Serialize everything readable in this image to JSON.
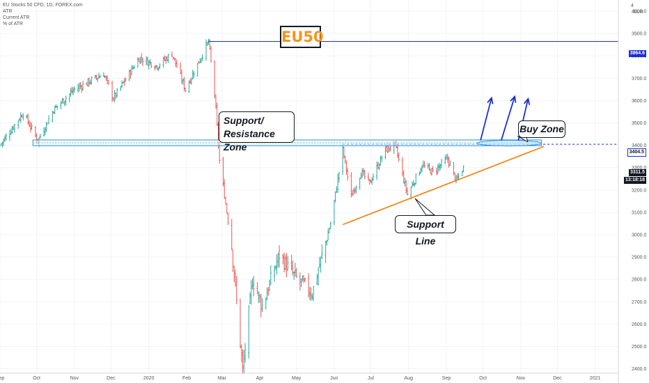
{
  "header": {
    "symbol_line": "EU Stocks 50 CFD, 1D, FOREX.com",
    "indicators": [
      "ATR",
      "Current ATR",
      "% of ATR"
    ]
  },
  "annotations": {
    "title_box": "EU50",
    "support_resistance_zone": [
      "Support/",
      "Resistance Zone"
    ],
    "buy_zone": "Buy Zone",
    "support_line": "Support Line"
  },
  "price_tags": {
    "top_level": "3864.6",
    "buy_level": "3404.5",
    "current_price": "3311.5",
    "countdown": "13:18:18"
  },
  "axis_top_label": "EUR",
  "axis_top_tick": "4",
  "colors": {
    "up_candle": "#26a69a",
    "down_candle": "#ef5350",
    "resistance_line": "#1e2fd6",
    "support_line": "#f57c00",
    "zone_stroke": "#2196f3",
    "zone_fill": "#e3f2fd",
    "arrows": "#1a2fd0",
    "title_text": "#f7931a",
    "current_tag": "#131722"
  },
  "chart_data": {
    "type": "candlestick",
    "xlabel": "",
    "ylabel": "",
    "y_range": [
      2380,
      4050
    ],
    "y_ticks": [
      2400,
      2500,
      2600,
      2700,
      2800,
      2900,
      3000,
      3100,
      3200,
      3300,
      3400,
      3500,
      3600,
      3700,
      3800,
      3900,
      4000
    ],
    "x_range": [
      "2019-09-01",
      "2021-01-20"
    ],
    "x_ticks": [
      {
        "label": "Sep",
        "date": "2019-09-01"
      },
      {
        "label": "Oct",
        "date": "2019-10-01"
      },
      {
        "label": "Nov",
        "date": "2019-11-01"
      },
      {
        "label": "Dec",
        "date": "2019-12-01"
      },
      {
        "label": "2020",
        "date": "2020-01-01"
      },
      {
        "label": "Feb",
        "date": "2020-02-01"
      },
      {
        "label": "Mar",
        "date": "2020-03-01"
      },
      {
        "label": "Apr",
        "date": "2020-04-01"
      },
      {
        "label": "May",
        "date": "2020-05-01"
      },
      {
        "label": "Jun",
        "date": "2020-06-01"
      },
      {
        "label": "Jul",
        "date": "2020-07-01"
      },
      {
        "label": "Aug",
        "date": "2020-08-01"
      },
      {
        "label": "Sep",
        "date": "2020-09-01"
      },
      {
        "label": "Oct",
        "date": "2020-10-01"
      },
      {
        "label": "Nov",
        "date": "2020-11-01"
      },
      {
        "label": "Dec",
        "date": "2020-12-01"
      },
      {
        "label": "2021",
        "date": "2021-01-01"
      }
    ],
    "price_path": [
      {
        "date": "2019-09-01",
        "close": 3400
      },
      {
        "date": "2019-09-20",
        "close": 3545
      },
      {
        "date": "2019-10-02",
        "close": 3420
      },
      {
        "date": "2019-10-15",
        "close": 3560
      },
      {
        "date": "2019-11-01",
        "close": 3650
      },
      {
        "date": "2019-11-25",
        "close": 3720
      },
      {
        "date": "2019-12-03",
        "close": 3610
      },
      {
        "date": "2019-12-24",
        "close": 3790
      },
      {
        "date": "2020-01-08",
        "close": 3755
      },
      {
        "date": "2020-01-20",
        "close": 3810
      },
      {
        "date": "2020-01-31",
        "close": 3650
      },
      {
        "date": "2020-02-19",
        "close": 3865
      },
      {
        "date": "2020-02-24",
        "close": 3630
      },
      {
        "date": "2020-02-28",
        "close": 3330
      },
      {
        "date": "2020-03-09",
        "close": 2950
      },
      {
        "date": "2020-03-18",
        "close": 2390
      },
      {
        "date": "2020-03-26",
        "close": 2800
      },
      {
        "date": "2020-04-03",
        "close": 2680
      },
      {
        "date": "2020-04-17",
        "close": 2910
      },
      {
        "date": "2020-04-30",
        "close": 2810
      },
      {
        "date": "2020-05-14",
        "close": 2740
      },
      {
        "date": "2020-05-29",
        "close": 3050
      },
      {
        "date": "2020-06-08",
        "close": 3380
      },
      {
        "date": "2020-06-15",
        "close": 3170
      },
      {
        "date": "2020-06-23",
        "close": 3280
      },
      {
        "date": "2020-06-30",
        "close": 3230
      },
      {
        "date": "2020-07-13",
        "close": 3380
      },
      {
        "date": "2020-07-21",
        "close": 3400
      },
      {
        "date": "2020-07-31",
        "close": 3180
      },
      {
        "date": "2020-08-12",
        "close": 3310
      },
      {
        "date": "2020-08-21",
        "close": 3280
      },
      {
        "date": "2020-09-02",
        "close": 3340
      },
      {
        "date": "2020-09-09",
        "close": 3240
      },
      {
        "date": "2020-09-16",
        "close": 3311.5
      }
    ],
    "levels": [
      {
        "price": 3864.6,
        "from": "2020-02-19",
        "style": "solid"
      },
      {
        "price": 3404.5,
        "from": "2020-06-08",
        "style": "dashed"
      }
    ],
    "support_trendline": [
      {
        "date": "2020-06-08",
        "price": 3045
      },
      {
        "date": "2020-11-20",
        "price": 3395
      }
    ],
    "sr_zone": {
      "from": "2019-09-28",
      "to": "2020-11-18",
      "low": 3398,
      "high": 3424
    },
    "buy_zone_ellipse": {
      "from": "2020-09-26",
      "to": "2020-11-18",
      "low": 3397,
      "high": 3422
    },
    "arrows": [
      {
        "from": {
          "date": "2020-09-29",
          "price": 3422
        },
        "to": {
          "date": "2020-10-08",
          "price": 3612
        }
      },
      {
        "from": {
          "date": "2020-10-16",
          "price": 3422
        },
        "to": {
          "date": "2020-10-27",
          "price": 3618
        }
      },
      {
        "from": {
          "date": "2020-10-30",
          "price": 3422
        },
        "to": {
          "date": "2020-11-07",
          "price": 3608
        }
      }
    ]
  }
}
